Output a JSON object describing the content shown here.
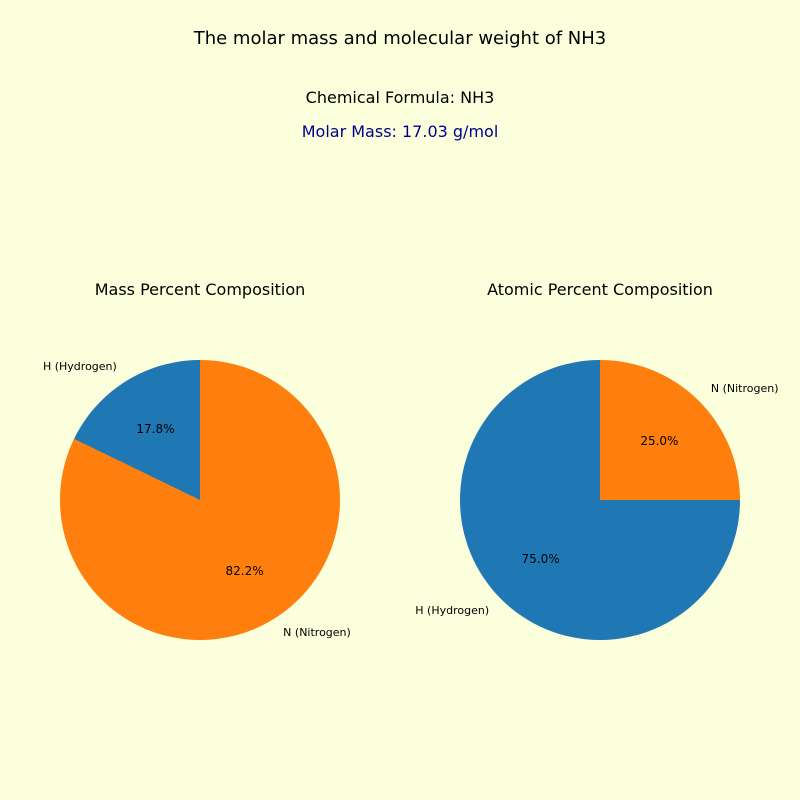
{
  "background_color": "#fcffdc",
  "title": "The molar mass and molecular weight of NH3",
  "title_fontsize": 18,
  "formula_text": "Chemical Formula: NH3",
  "molar_mass_text": "Molar Mass: 17.03 g/mol",
  "molar_mass_color": "#00008b",
  "subtitle_fontsize": 16,
  "colors": {
    "H": "#1f77b4",
    "N": "#ff7f0e"
  },
  "mass_chart": {
    "title": "Mass Percent Composition",
    "type": "pie",
    "start_angle_deg": 90,
    "slices": [
      {
        "label": "H (Hydrogen)",
        "value": 17.8,
        "pct_text": "17.8%",
        "color_key": "H"
      },
      {
        "label": "N (Nitrogen)",
        "value": 82.2,
        "pct_text": "82.2%",
        "color_key": "N"
      }
    ],
    "label_fontsize": 11,
    "pct_fontsize": 12
  },
  "atomic_chart": {
    "title": "Atomic Percent Composition",
    "type": "pie",
    "start_angle_deg": 90,
    "slices": [
      {
        "label": "H (Hydrogen)",
        "value": 75.0,
        "pct_text": "75.0%",
        "color_key": "H"
      },
      {
        "label": "N (Nitrogen)",
        "value": 25.0,
        "pct_text": "25.0%",
        "color_key": "N"
      }
    ],
    "label_fontsize": 11,
    "pct_fontsize": 12
  }
}
